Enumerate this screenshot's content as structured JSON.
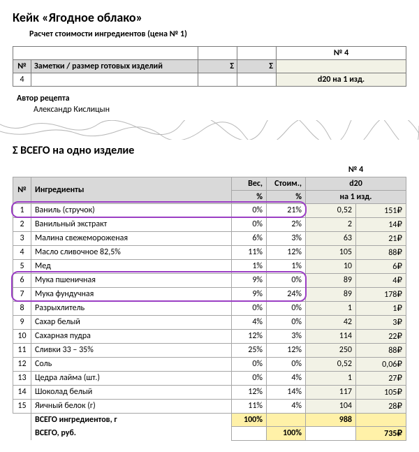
{
  "title": "Кейк «Ягодное облако»",
  "subtitle": "Расчет стоимости ингредиентов (цена № 1)",
  "header_table": {
    "recipe_no": "№ 4",
    "col_num": "№",
    "col_notes": "Заметки / размер готовых изделий",
    "col_sigma": "Σ",
    "row": {
      "num": "4",
      "spec": "d20 на 1 изд."
    }
  },
  "author_label": "Автор рецепта",
  "author_name": "Александр Кислицын",
  "section_title": "Σ  ВСЕГО на одно изделие",
  "main": {
    "recipe_no": "№ 4",
    "col_num": "№",
    "col_ing": "Ингредиенты",
    "col_weight_pct_top": "Вес,",
    "col_weight_pct_bot": "%",
    "col_cost_pct_top": "Стоим.,",
    "col_cost_pct_bot": "%",
    "recipe_spec": "d20",
    "recipe_per": "на 1 изд.",
    "rows": [
      {
        "n": "1",
        "name": "Ваниль (стручок)",
        "wpct": "0%",
        "cpct": "21%",
        "wt": "0,52",
        "cost": "151₽"
      },
      {
        "n": "2",
        "name": "Ванильный экстракт",
        "wpct": "0%",
        "cpct": "2%",
        "wt": "2",
        "cost": "14₽"
      },
      {
        "n": "3",
        "name": "Малина свежемороженая",
        "wpct": "6%",
        "cpct": "3%",
        "wt": "63",
        "cost": "21₽"
      },
      {
        "n": "4",
        "name": "Масло сливочное 82,5%",
        "wpct": "11%",
        "cpct": "12%",
        "wt": "105",
        "cost": "88₽"
      },
      {
        "n": "5",
        "name": "Мед",
        "wpct": "1%",
        "cpct": "1%",
        "wt": "10",
        "cost": "6₽"
      },
      {
        "n": "6",
        "name": "Мука пшеничная",
        "wpct": "9%",
        "cpct": "0%",
        "wt": "89",
        "cost": "4₽"
      },
      {
        "n": "7",
        "name": "Мука фундучная",
        "wpct": "9%",
        "cpct": "24%",
        "wt": "89",
        "cost": "178₽"
      },
      {
        "n": "8",
        "name": "Разрыхлитель",
        "wpct": "0%",
        "cpct": "0%",
        "wt": "1",
        "cost": "1₽"
      },
      {
        "n": "9",
        "name": "Сахар белый",
        "wpct": "4%",
        "cpct": "0%",
        "wt": "42",
        "cost": "3₽"
      },
      {
        "n": "10",
        "name": "Сахарная пудра",
        "wpct": "12%",
        "cpct": "3%",
        "wt": "114",
        "cost": "22₽"
      },
      {
        "n": "11",
        "name": "Сливки 33 – 35%",
        "wpct": "25%",
        "cpct": "12%",
        "wt": "250",
        "cost": "88₽"
      },
      {
        "n": "12",
        "name": "Соль",
        "wpct": "0%",
        "cpct": "0%",
        "wt": "0,52",
        "cost": "0,06₽"
      },
      {
        "n": "13",
        "name": "Цедра лайма (шт.)",
        "wpct": "0%",
        "cpct": "4%",
        "wt": "1",
        "cost": "27₽"
      },
      {
        "n": "14",
        "name": "Шоколад белый",
        "wpct": "12%",
        "cpct": "14%",
        "wt": "117",
        "cost": "105₽"
      },
      {
        "n": "15",
        "name": "Яичный белок (г)",
        "wpct": "11%",
        "cpct": "4%",
        "wt": "104",
        "cost": "28₽"
      }
    ],
    "totals": {
      "ing_label": "ВСЕГО ингредиентов, г",
      "ing_wpct": "100%",
      "ing_wt": "988",
      "money_label": "ВСЕГО, руб.",
      "money_cpct": "100%",
      "money_cost": "735₽"
    }
  },
  "highlight": {
    "color": "#9b3fc4",
    "boxes": [
      {
        "row": 1,
        "left_col": "num",
        "right_col": "cpct"
      },
      {
        "row_start": 6,
        "row_end": 7,
        "left_col": "num",
        "right_col": "cpct"
      }
    ]
  },
  "colors": {
    "header_bg": "#d9d9d9",
    "value_bg": "#f2f2e6",
    "highlight_bg": "#fff1a8",
    "border": "#a6a6a6"
  }
}
